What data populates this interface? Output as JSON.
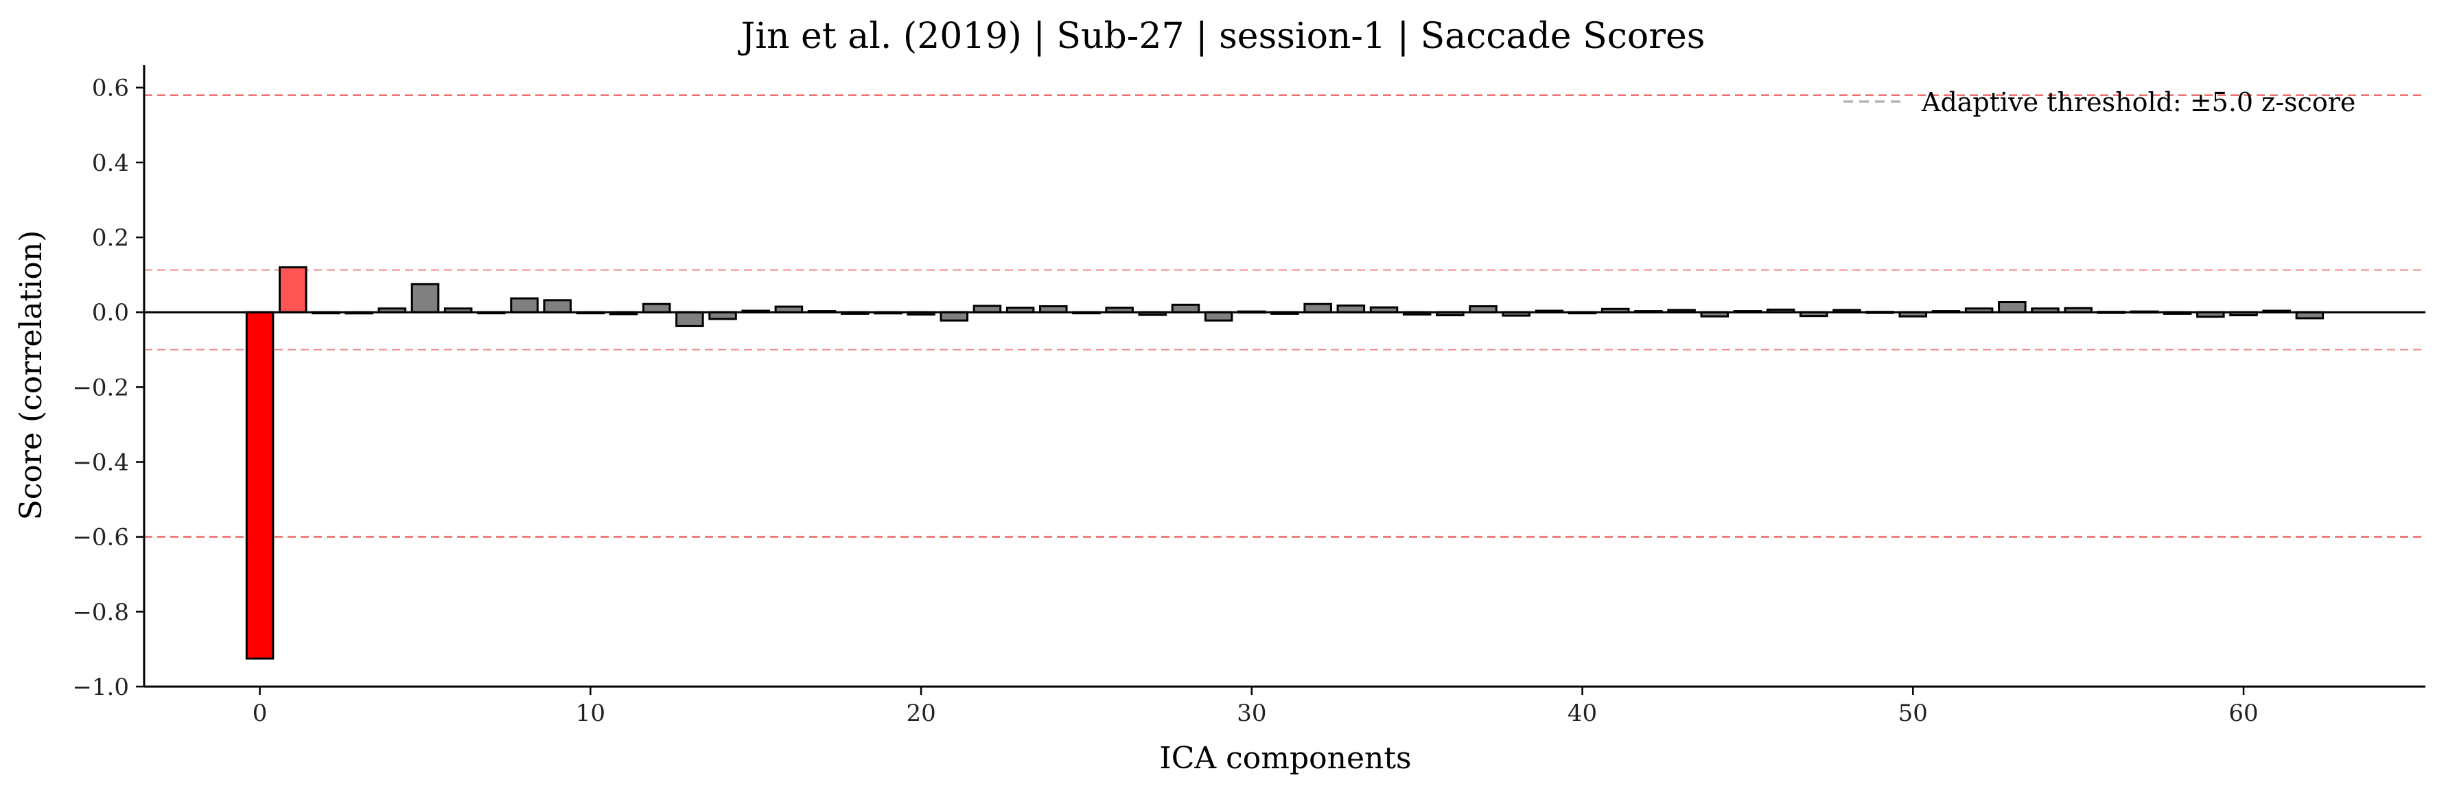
{
  "chart_data": {
    "type": "bar",
    "title": "Jin et al. (2019) | Sub-27 | session-1 | Saccade Scores",
    "xlabel": "ICA components",
    "ylabel": "Score (correlation)",
    "xlim": [
      -3.5,
      65.5
    ],
    "ylim": [
      -1.0,
      0.66
    ],
    "xticks": [
      0,
      10,
      20,
      30,
      40,
      50,
      60
    ],
    "yticks": [
      -1.0,
      -0.8,
      -0.6,
      -0.4,
      -0.2,
      0.0,
      0.2,
      0.4,
      0.6
    ],
    "ytick_labels": [
      "−1.0",
      "−0.8",
      "−0.6",
      "−0.4",
      "−0.2",
      "0.0",
      "0.2",
      "0.4",
      "0.6"
    ],
    "x": [
      0,
      1,
      2,
      3,
      4,
      5,
      6,
      7,
      8,
      9,
      10,
      11,
      12,
      13,
      14,
      15,
      16,
      17,
      18,
      19,
      20,
      21,
      22,
      23,
      24,
      25,
      26,
      27,
      28,
      29,
      30,
      31,
      32,
      33,
      34,
      35,
      36,
      37,
      38,
      39,
      40,
      41,
      42,
      43,
      44,
      45,
      46,
      47,
      48,
      49,
      50,
      51,
      52,
      53,
      54,
      55,
      56,
      57,
      58,
      59,
      60,
      61,
      62
    ],
    "values": [
      -0.925,
      0.12,
      0.0,
      -0.003,
      0.01,
      0.075,
      0.01,
      -0.002,
      0.037,
      0.032,
      -0.002,
      -0.005,
      0.022,
      -0.037,
      -0.018,
      0.004,
      0.015,
      0.003,
      -0.004,
      -0.003,
      -0.006,
      -0.022,
      0.017,
      0.012,
      0.016,
      -0.002,
      0.012,
      -0.007,
      0.02,
      -0.022,
      0.002,
      -0.004,
      0.022,
      0.018,
      0.013,
      -0.006,
      -0.008,
      0.016,
      -0.009,
      0.004,
      -0.002,
      0.009,
      0.003,
      0.006,
      -0.011,
      0.003,
      0.007,
      -0.01,
      0.006,
      0.001,
      -0.011,
      0.003,
      0.01,
      0.027,
      0.01,
      0.011,
      0.001,
      0.002,
      -0.004,
      -0.012,
      -0.008,
      0.004,
      -0.016
    ],
    "bar_colors": {
      "0": "#ff0000",
      "1": "#ff5555",
      "default": "#808080"
    },
    "edge_color": "#000000",
    "threshold_lines": [
      0.58,
      0.113,
      -0.1,
      -0.6
    ],
    "threshold_color": "#e84a4a",
    "zero_line": 0.0,
    "legend": {
      "placement": "top-right",
      "label": "Adaptive threshold: ±5.0 z-score",
      "line_color": "#aaaaaa"
    },
    "grid": false
  }
}
